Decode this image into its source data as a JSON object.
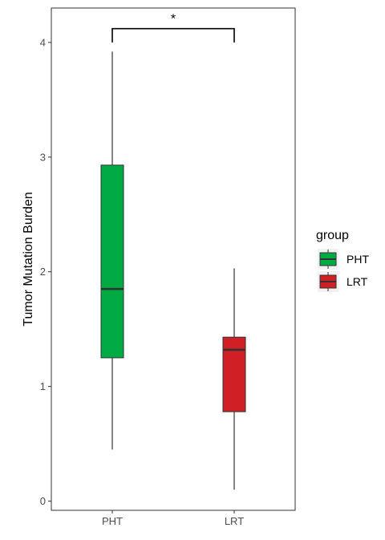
{
  "chart_data": {
    "type": "boxplot",
    "ylabel": "Tumor Mutation Burden",
    "xlabel": "",
    "categories": [
      "PHT",
      "LRT"
    ],
    "ylim": [
      -0.08,
      4.3
    ],
    "yticks": [
      "0",
      "1",
      "2",
      "3",
      "4"
    ],
    "grid": false,
    "legend": {
      "title": "group",
      "position": "right",
      "items": [
        {
          "label": "PHT",
          "color": "#00AB44"
        },
        {
          "label": "LRT",
          "color": "#D01F25"
        }
      ]
    },
    "series": [
      {
        "category": "PHT",
        "min": 0.45,
        "q1": 1.25,
        "median": 1.85,
        "q3": 2.93,
        "max": 3.92,
        "color": "#00AB44"
      },
      {
        "category": "LRT",
        "min": 0.1,
        "q1": 0.78,
        "median": 1.32,
        "q3": 1.43,
        "max": 2.03,
        "color": "#D01F25"
      }
    ],
    "annotation": {
      "label": "*",
      "from": "PHT",
      "to": "LRT",
      "y_top": 4.12,
      "y_bottom": 4.0
    }
  }
}
